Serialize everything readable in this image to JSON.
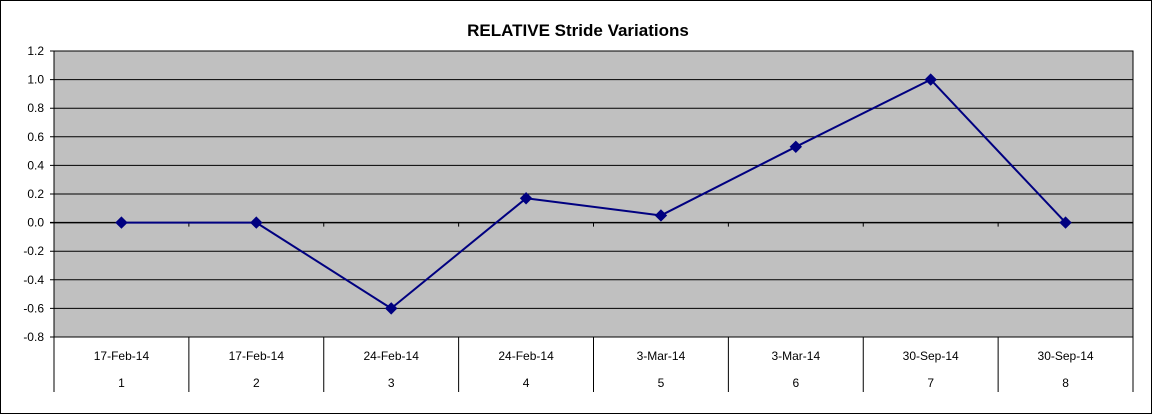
{
  "chart_data": {
    "type": "line",
    "title": "RELATIVE Stride Variations",
    "xlabel": "",
    "ylabel": "",
    "ylim": [
      -0.8,
      1.2
    ],
    "yticks": [
      1.2,
      1.0,
      0.8,
      0.6,
      0.4,
      0.2,
      0.0,
      -0.2,
      -0.4,
      -0.6,
      -0.8
    ],
    "ytick_labels": [
      "1.2",
      "1.0",
      "0.8",
      "0.6",
      "0.4",
      "0.2",
      "0.0",
      "-0.2",
      "-0.4",
      "-0.6",
      "-0.8"
    ],
    "categories": [
      {
        "date": "17-Feb-14",
        "index": "1"
      },
      {
        "date": "17-Feb-14",
        "index": "2"
      },
      {
        "date": "24-Feb-14",
        "index": "3"
      },
      {
        "date": "24-Feb-14",
        "index": "4"
      },
      {
        "date": "3-Mar-14",
        "index": "5"
      },
      {
        "date": "3-Mar-14",
        "index": "6"
      },
      {
        "date": "30-Sep-14",
        "index": "7"
      },
      {
        "date": "30-Sep-14",
        "index": "8"
      }
    ],
    "series": [
      {
        "values": [
          0.0,
          0.0,
          -0.6,
          0.17,
          0.05,
          0.53,
          1.0,
          0.0
        ]
      }
    ],
    "grid": true,
    "legend": "none",
    "colors": {
      "plot_bg": "#c0c0c0",
      "line": "#000080",
      "grid": "#000000"
    }
  }
}
